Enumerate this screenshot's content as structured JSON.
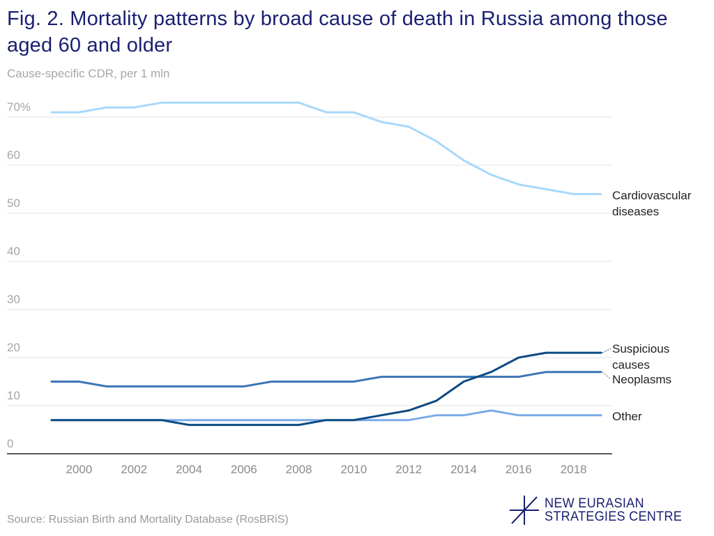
{
  "header": {
    "title": "Fig. 2. Mortality patterns by broad cause of death in Russia among those aged 60 and older",
    "subtitle": "Cause-specific CDR, per 1 mln"
  },
  "footer": {
    "source": "Source: Russian Birth and Mortality Database (RosBRiS)",
    "logo_line1": "NEW EURASIAN",
    "logo_line2": "STRATEGIES CENTRE",
    "logo_color": "#1a1f71"
  },
  "chart_data": {
    "type": "line",
    "title": "Fig. 2. Mortality patterns by broad cause of death in Russia among those aged 60 and older",
    "subtitle": "Cause-specific CDR, per 1 mln",
    "xlabel": "",
    "ylabel": "Cause-specific CDR, per 1 mln",
    "ylim": [
      0,
      70
    ],
    "xlim": [
      1999,
      2019
    ],
    "grid": true,
    "legend": "right-inline",
    "y_ticks": [
      0,
      10,
      20,
      30,
      40,
      50,
      60,
      70
    ],
    "y_tick_labels": [
      "0",
      "10",
      "20",
      "30",
      "40",
      "50",
      "60",
      "70%"
    ],
    "x_ticks": [
      2000,
      2002,
      2004,
      2006,
      2008,
      2010,
      2012,
      2014,
      2016,
      2018
    ],
    "x_tick_labels": [
      "2000",
      "2002",
      "2004",
      "2006",
      "2008",
      "2010",
      "2012",
      "2014",
      "2016",
      "2018"
    ],
    "x": [
      1999,
      2000,
      2001,
      2002,
      2003,
      2004,
      2005,
      2006,
      2007,
      2008,
      2009,
      2010,
      2011,
      2012,
      2013,
      2014,
      2015,
      2016,
      2017,
      2018,
      2019
    ],
    "series": [
      {
        "name": "Cardiovascular diseases",
        "label_lines": [
          "Cardiovascular",
          "diseases"
        ],
        "color": "#a8d8fb",
        "values": [
          71,
          71,
          72,
          72,
          73,
          73,
          73,
          73,
          73,
          73,
          71,
          71,
          69,
          68,
          65,
          61,
          58,
          56,
          55,
          54,
          54
        ]
      },
      {
        "name": "Other",
        "label_lines": [
          "Other"
        ],
        "color": "#7aaae8",
        "values": [
          7,
          7,
          7,
          7,
          7,
          7,
          7,
          7,
          7,
          7,
          7,
          7,
          7,
          7,
          8,
          8,
          9,
          8,
          8,
          8,
          8
        ]
      },
      {
        "name": "Neoplasms",
        "label_lines": [
          "Neoplasms"
        ],
        "color": "#3e74b5",
        "values": [
          15,
          15,
          14,
          14,
          14,
          14,
          14,
          14,
          15,
          15,
          15,
          15,
          16,
          16,
          16,
          16,
          16,
          16,
          17,
          17,
          17
        ]
      },
      {
        "name": "Suspicious causes",
        "label_lines": [
          "Suspicious",
          "causes"
        ],
        "color": "#0d4a82",
        "values": [
          7,
          7,
          7,
          7,
          7,
          6,
          6,
          6,
          6,
          6,
          7,
          7,
          8,
          9,
          11,
          15,
          17,
          20,
          21,
          21,
          21
        ]
      }
    ]
  }
}
